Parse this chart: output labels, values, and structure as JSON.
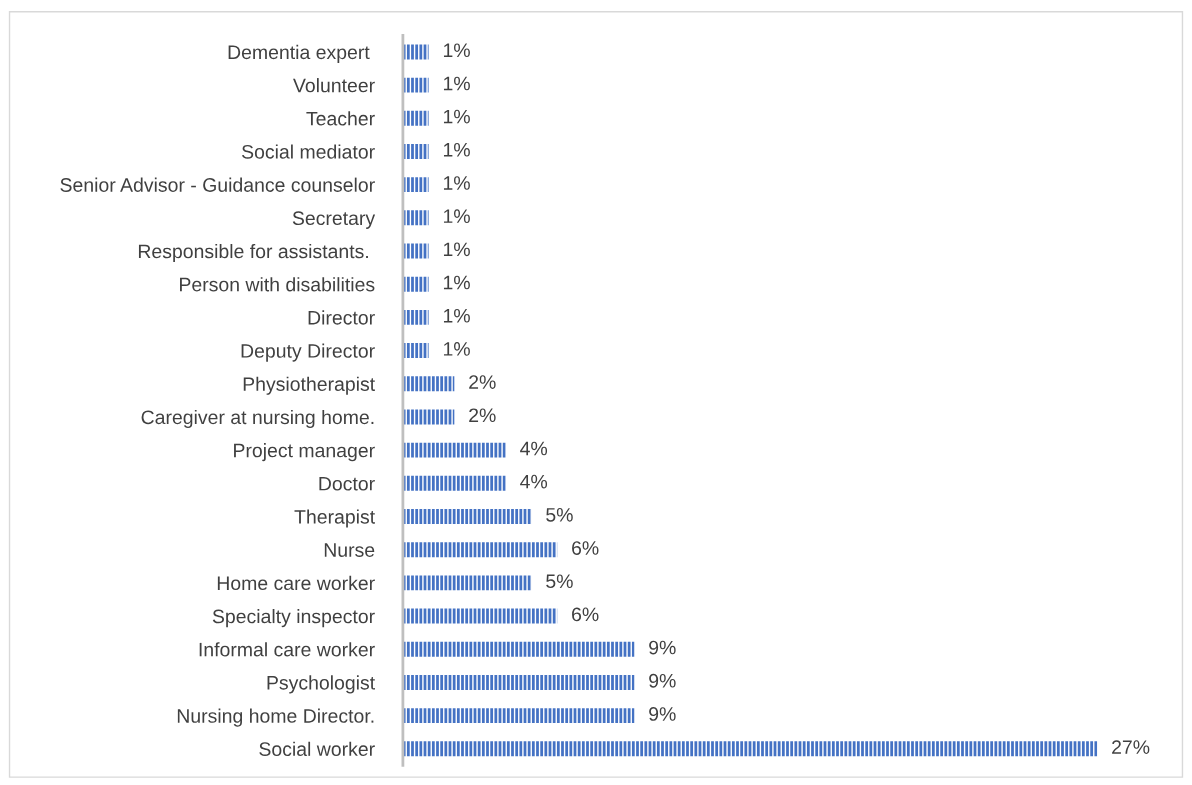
{
  "chart_data": {
    "type": "bar",
    "orientation": "horizontal",
    "color": "#4472c4",
    "grid": false,
    "legend": false,
    "tick_labels": "y",
    "categories": [
      "Dementia expert ",
      "Volunteer",
      "Teacher",
      "Social mediator",
      "Senior Advisor - Guidance counselor",
      "Secretary",
      "Responsible for assistants. ",
      "Person with disabilities",
      "Director",
      "Deputy Director",
      "Physiotherapist",
      "Caregiver at nursing home.",
      "Project manager",
      "Doctor",
      "Therapist",
      "Nurse",
      "Home care worker",
      "Specialty inspector",
      "Informal care worker",
      "Psychologist",
      "Nursing home Director.",
      "Social worker"
    ],
    "values": [
      1,
      1,
      1,
      1,
      1,
      1,
      1,
      1,
      1,
      1,
      2,
      2,
      4,
      4,
      5,
      6,
      5,
      6,
      9,
      9,
      9,
      27
    ],
    "value_labels": [
      "1%",
      "1%",
      "1%",
      "1%",
      "1%",
      "1%",
      "1%",
      "1%",
      "1%",
      "1%",
      "2%",
      "2%",
      "4%",
      "4%",
      "5%",
      "6%",
      "5%",
      "6%",
      "9%",
      "9%",
      "9%",
      "27%"
    ]
  }
}
